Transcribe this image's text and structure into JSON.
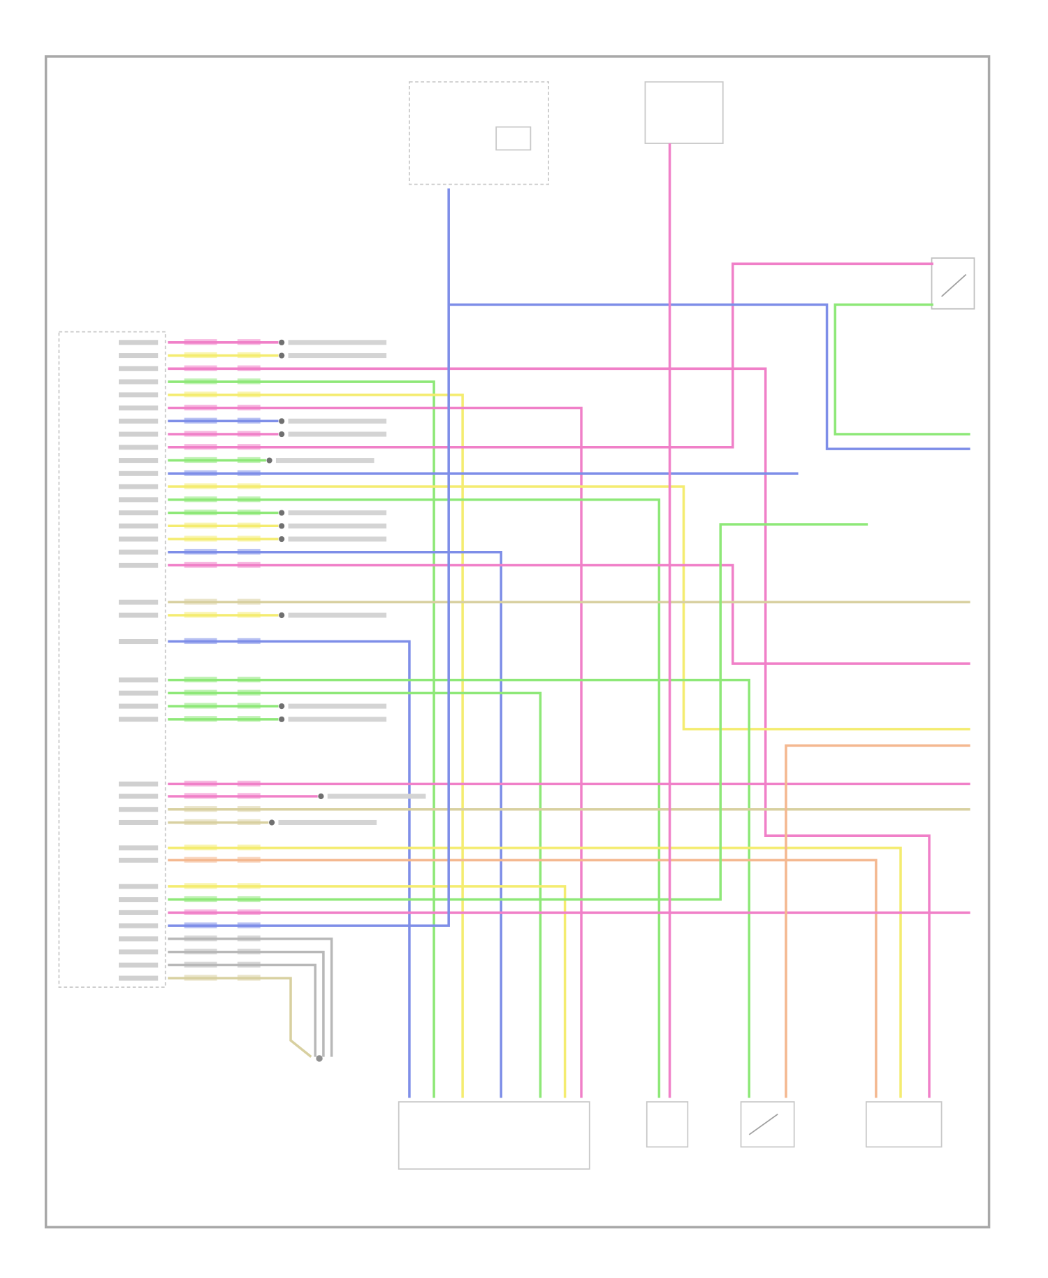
{
  "diagram": {
    "type": "wiring-schematic",
    "wire_colors": {
      "pink": "#f080c8",
      "yellow": "#f4ec70",
      "green": "#8ee878",
      "blue": "#7e8ee8",
      "orange": "#f4b890",
      "tan": "#d8d0a0",
      "gray": "#b8b8b8"
    },
    "frame_color": "#a0a0a0",
    "label_color": "#c8c8c8"
  }
}
